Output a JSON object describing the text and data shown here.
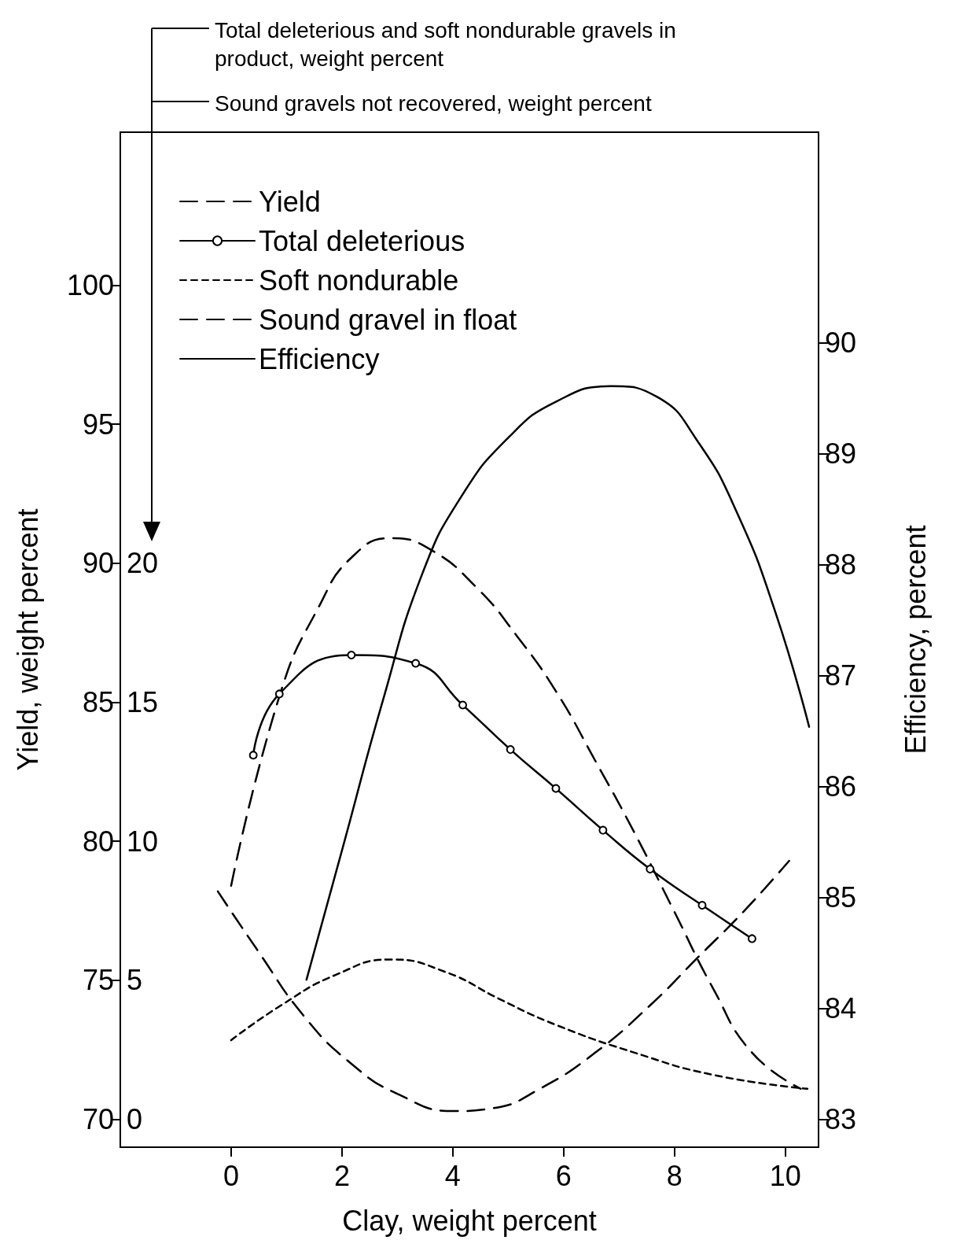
{
  "chart_data": {
    "type": "line",
    "xlabel": "Clay, weight percent",
    "ylabel": "Yield, weight percent",
    "y2label": "Efficiency, percent",
    "annotations": [
      "Total deleterious and soft nondurable gravels in product, weight percent",
      "Sound gravels not recovered, weight percent"
    ],
    "xlim": [
      -2,
      10.6
    ],
    "xticks": [
      0,
      2,
      4,
      6,
      8,
      10
    ],
    "ylim": [
      69,
      105.5
    ],
    "yticks": [
      70,
      75,
      80,
      85,
      90,
      95,
      100
    ],
    "y3lim": [
      -1,
      35.5
    ],
    "y3ticks": [
      0,
      5,
      10,
      15,
      20
    ],
    "y2lim": [
      82.75,
      91.9
    ],
    "y2ticks": [
      83,
      84,
      85,
      86,
      87,
      88,
      89,
      90
    ],
    "grid": false,
    "legend": "top left",
    "series": [
      {
        "name": "Yield",
        "axis": "y",
        "line_style": "dashed",
        "marker": "none",
        "color": "#000000",
        "x": [
          0,
          0.9,
          1.6,
          2.17,
          2.88,
          3.59,
          4.44,
          5.15,
          5.86,
          6.57,
          7.28,
          7.99,
          8.7,
          9.4,
          10.28
        ],
        "values": [
          78.4,
          85.4,
          88.5,
          90.2,
          90.9,
          90.5,
          89.1,
          87.4,
          85.4,
          82.9,
          80.3,
          77.5,
          74.7,
          72.4,
          71.1
        ]
      },
      {
        "name": "Total deleterious",
        "axis": "y3",
        "line_style": "solid",
        "marker": "circle",
        "color": "#000000",
        "x": [
          0.4,
          0.87,
          2.17,
          3.33,
          4.18,
          5.04,
          5.86,
          6.71,
          7.56,
          8.5,
          9.4
        ],
        "values": [
          13.1,
          15.3,
          16.7,
          16.4,
          14.9,
          13.3,
          11.9,
          10.4,
          9.0,
          7.7,
          6.5
        ]
      },
      {
        "name": "Soft nondurable",
        "axis": "y3",
        "line_style": "dotted",
        "marker": "none",
        "color": "#000000",
        "x": [
          0,
          0.9,
          1.89,
          2.88,
          3.87,
          4.87,
          5.86,
          7.28,
          8.7,
          10.4
        ],
        "values": [
          2.85,
          4.1,
          5.2,
          5.75,
          5.3,
          4.3,
          3.4,
          2.4,
          1.6,
          1.1
        ]
      },
      {
        "name": "Sound gravel in float",
        "axis": "y3",
        "line_style": "dashed",
        "marker": "none",
        "color": "#000000",
        "x": [
          -0.24,
          0.47,
          1.32,
          2.17,
          3.02,
          4.01,
          4.72,
          5.57,
          6.57,
          7.56,
          8.41,
          9.26,
          10.07
        ],
        "values": [
          8.2,
          6.1,
          3.7,
          2.0,
          0.9,
          0.3,
          0.4,
          1.1,
          2.4,
          4.1,
          5.8,
          7.5,
          9.3
        ]
      },
      {
        "name": "Efficiency",
        "axis": "y2",
        "line_style": "solid",
        "marker": "none",
        "color": "#000000",
        "x": [
          1.36,
          2.03,
          2.74,
          3.45,
          4.16,
          5.01,
          5.86,
          6.85,
          7.7,
          8.41,
          9.12,
          9.83,
          10.43
        ],
        "values": [
          84.26,
          85.48,
          86.78,
          87.92,
          88.62,
          89.15,
          89.47,
          89.61,
          89.51,
          89.12,
          88.48,
          87.56,
          86.54
        ]
      }
    ]
  }
}
